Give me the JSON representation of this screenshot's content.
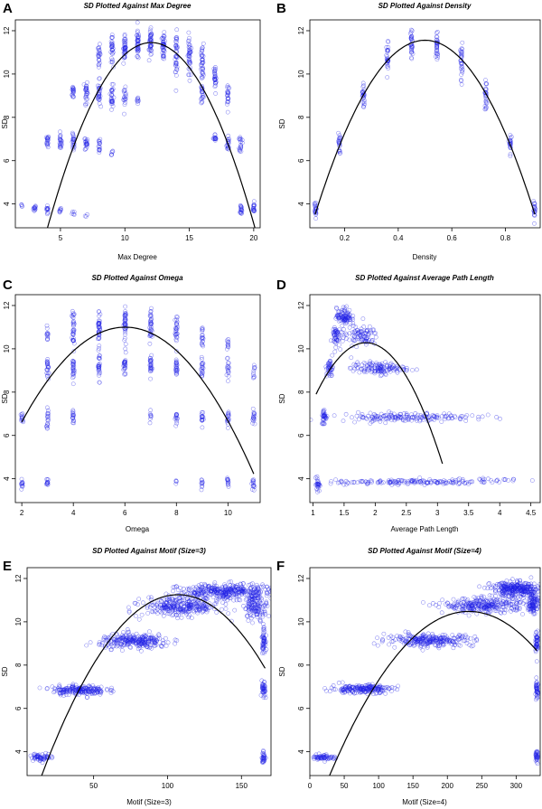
{
  "figure": {
    "point_color": "#1f1fe6",
    "fit_color": "#000000"
  },
  "chart_data": [
    {
      "type": "scatter",
      "letter": "A",
      "title": "SD Plotted Against Max Degree",
      "title_italic_prefix": "SD",
      "xlabel": "Max Degree",
      "ylabel": "SD",
      "xlim": [
        1.5,
        20.5
      ],
      "ylim": [
        2.9,
        12.5
      ],
      "xticks": [
        5,
        10,
        15,
        20
      ],
      "yticks": [
        4,
        6,
        8,
        10,
        12
      ],
      "clusters": [
        {
          "x": 2,
          "y": 3.9,
          "yspread": 0.1,
          "xspread": 0.05,
          "n": 4
        },
        {
          "x": 3,
          "y": 3.8,
          "yspread": 0.15,
          "xspread": 0.05,
          "n": 12
        },
        {
          "x": 4,
          "y": 3.75,
          "yspread": 0.15,
          "xspread": 0.05,
          "n": 12
        },
        {
          "x": 5,
          "y": 3.7,
          "yspread": 0.12,
          "xspread": 0.05,
          "n": 8
        },
        {
          "x": 6,
          "y": 3.55,
          "yspread": 0.1,
          "xspread": 0.05,
          "n": 5
        },
        {
          "x": 7,
          "y": 3.45,
          "yspread": 0.08,
          "xspread": 0.05,
          "n": 3
        },
        {
          "x": 4,
          "y": 6.9,
          "yspread": 0.25,
          "xspread": 0.05,
          "n": 18
        },
        {
          "x": 5,
          "y": 6.85,
          "yspread": 0.35,
          "xspread": 0.05,
          "n": 22
        },
        {
          "x": 6,
          "y": 6.8,
          "yspread": 0.4,
          "xspread": 0.05,
          "n": 22
        },
        {
          "x": 7,
          "y": 6.8,
          "yspread": 0.35,
          "xspread": 0.05,
          "n": 20
        },
        {
          "x": 8,
          "y": 6.7,
          "yspread": 0.35,
          "xspread": 0.05,
          "n": 16
        },
        {
          "x": 9,
          "y": 6.4,
          "yspread": 0.2,
          "xspread": 0.05,
          "n": 6
        },
        {
          "x": 6,
          "y": 9.2,
          "yspread": 0.35,
          "xspread": 0.05,
          "n": 18
        },
        {
          "x": 7,
          "y": 9.2,
          "yspread": 0.5,
          "xspread": 0.05,
          "n": 26
        },
        {
          "x": 8,
          "y": 9.1,
          "yspread": 0.55,
          "xspread": 0.05,
          "n": 28
        },
        {
          "x": 9,
          "y": 9.0,
          "yspread": 0.55,
          "xspread": 0.05,
          "n": 28
        },
        {
          "x": 10,
          "y": 8.9,
          "yspread": 0.4,
          "xspread": 0.05,
          "n": 18
        },
        {
          "x": 11,
          "y": 8.8,
          "yspread": 0.25,
          "xspread": 0.05,
          "n": 8
        },
        {
          "x": 8,
          "y": 10.9,
          "yspread": 0.4,
          "xspread": 0.05,
          "n": 22
        },
        {
          "x": 9,
          "y": 11.1,
          "yspread": 0.55,
          "xspread": 0.05,
          "n": 30
        },
        {
          "x": 10,
          "y": 11.2,
          "yspread": 0.7,
          "xspread": 0.05,
          "n": 40
        },
        {
          "x": 11,
          "y": 11.3,
          "yspread": 0.6,
          "xspread": 0.05,
          "n": 40
        },
        {
          "x": 12,
          "y": 11.4,
          "yspread": 0.55,
          "xspread": 0.05,
          "n": 40
        },
        {
          "x": 13,
          "y": 11.3,
          "yspread": 0.6,
          "xspread": 0.05,
          "n": 40
        },
        {
          "x": 14,
          "y": 11.0,
          "yspread": 0.8,
          "xspread": 0.05,
          "n": 40
        },
        {
          "x": 15,
          "y": 10.8,
          "yspread": 0.9,
          "xspread": 0.05,
          "n": 40
        },
        {
          "x": 16,
          "y": 10.4,
          "yspread": 0.9,
          "xspread": 0.05,
          "n": 36
        },
        {
          "x": 17,
          "y": 9.8,
          "yspread": 0.7,
          "xspread": 0.05,
          "n": 28
        },
        {
          "x": 16,
          "y": 9.1,
          "yspread": 0.5,
          "xspread": 0.05,
          "n": 20
        },
        {
          "x": 18,
          "y": 9.1,
          "yspread": 0.55,
          "xspread": 0.05,
          "n": 22
        },
        {
          "x": 17,
          "y": 7.0,
          "yspread": 0.2,
          "xspread": 0.05,
          "n": 14
        },
        {
          "x": 18,
          "y": 6.8,
          "yspread": 0.35,
          "xspread": 0.05,
          "n": 18
        },
        {
          "x": 19,
          "y": 6.8,
          "yspread": 0.35,
          "xspread": 0.05,
          "n": 18
        },
        {
          "x": 19,
          "y": 3.75,
          "yspread": 0.25,
          "xspread": 0.05,
          "n": 18
        },
        {
          "x": 20,
          "y": 3.8,
          "yspread": 0.25,
          "xspread": 0.05,
          "n": 18
        }
      ],
      "fit": {
        "coef": [
          -0.132,
          3.18,
          -7.7
        ],
        "x_range": [
          3.4,
          20.3
        ]
      }
    },
    {
      "type": "scatter",
      "letter": "B",
      "title": "SD Plotted Against Density",
      "title_italic_prefix": "SD",
      "xlabel": "Density",
      "ylabel": "SD",
      "xlim": [
        0.07,
        0.93
      ],
      "ylim": [
        2.9,
        12.5
      ],
      "xticks": [
        0.2,
        0.4,
        0.6,
        0.8
      ],
      "yticks": [
        4,
        6,
        8,
        10,
        12
      ],
      "clusters": [
        {
          "x": 0.09,
          "y": 3.7,
          "yspread": 0.35,
          "xspread": 0.002,
          "n": 20
        },
        {
          "x": 0.18,
          "y": 6.8,
          "yspread": 0.45,
          "xspread": 0.002,
          "n": 22
        },
        {
          "x": 0.27,
          "y": 9.0,
          "yspread": 0.6,
          "xspread": 0.002,
          "n": 26
        },
        {
          "x": 0.36,
          "y": 10.7,
          "yspread": 0.7,
          "xspread": 0.002,
          "n": 30
        },
        {
          "x": 0.45,
          "y": 11.3,
          "yspread": 0.7,
          "xspread": 0.002,
          "n": 32
        },
        {
          "x": 0.545,
          "y": 11.3,
          "yspread": 0.7,
          "xspread": 0.002,
          "n": 32
        },
        {
          "x": 0.636,
          "y": 10.6,
          "yspread": 0.75,
          "xspread": 0.002,
          "n": 30
        },
        {
          "x": 0.727,
          "y": 9.0,
          "yspread": 0.6,
          "xspread": 0.002,
          "n": 26
        },
        {
          "x": 0.818,
          "y": 6.8,
          "yspread": 0.45,
          "xspread": 0.002,
          "n": 22
        },
        {
          "x": 0.909,
          "y": 3.7,
          "yspread": 0.35,
          "xspread": 0.002,
          "n": 20
        }
      ],
      "fit": {
        "coef": [
          -47.8,
          47.8,
          -0.39
        ],
        "x_range": [
          0.09,
          0.91
        ]
      }
    },
    {
      "type": "scatter",
      "letter": "C",
      "title": "SD Plotted Against Omega",
      "title_italic_prefix": "SD",
      "xlabel": "Omega",
      "ylabel": "SD",
      "xlim": [
        1.75,
        11.25
      ],
      "ylim": [
        2.9,
        12.5
      ],
      "xticks": [
        2,
        4,
        6,
        8,
        10
      ],
      "yticks": [
        4,
        6,
        8,
        10,
        12
      ],
      "clusters": [
        {
          "x": 2,
          "y": 3.8,
          "yspread": 0.2,
          "xspread": 0.02,
          "n": 12
        },
        {
          "x": 3,
          "y": 3.8,
          "yspread": 0.2,
          "xspread": 0.02,
          "n": 12
        },
        {
          "x": 8,
          "y": 3.85,
          "yspread": 0.1,
          "xspread": 0.02,
          "n": 4
        },
        {
          "x": 9,
          "y": 3.8,
          "yspread": 0.2,
          "xspread": 0.02,
          "n": 10
        },
        {
          "x": 10,
          "y": 3.8,
          "yspread": 0.2,
          "xspread": 0.02,
          "n": 12
        },
        {
          "x": 11,
          "y": 3.75,
          "yspread": 0.25,
          "xspread": 0.02,
          "n": 14
        },
        {
          "x": 2,
          "y": 6.8,
          "yspread": 0.3,
          "xspread": 0.02,
          "n": 12
        },
        {
          "x": 3,
          "y": 6.8,
          "yspread": 0.4,
          "xspread": 0.02,
          "n": 18
        },
        {
          "x": 4,
          "y": 6.85,
          "yspread": 0.3,
          "xspread": 0.02,
          "n": 16
        },
        {
          "x": 7,
          "y": 6.9,
          "yspread": 0.2,
          "xspread": 0.02,
          "n": 8
        },
        {
          "x": 8,
          "y": 6.8,
          "yspread": 0.3,
          "xspread": 0.02,
          "n": 14
        },
        {
          "x": 9,
          "y": 6.8,
          "yspread": 0.35,
          "xspread": 0.02,
          "n": 16
        },
        {
          "x": 10,
          "y": 6.8,
          "yspread": 0.35,
          "xspread": 0.02,
          "n": 16
        },
        {
          "x": 11,
          "y": 6.8,
          "yspread": 0.35,
          "xspread": 0.02,
          "n": 16
        },
        {
          "x": 3,
          "y": 9.1,
          "yspread": 0.55,
          "xspread": 0.02,
          "n": 22
        },
        {
          "x": 4,
          "y": 9.1,
          "yspread": 0.55,
          "xspread": 0.02,
          "n": 26
        },
        {
          "x": 5,
          "y": 9.2,
          "yspread": 0.55,
          "xspread": 0.02,
          "n": 28
        },
        {
          "x": 6,
          "y": 9.2,
          "yspread": 0.5,
          "xspread": 0.02,
          "n": 26
        },
        {
          "x": 7,
          "y": 9.2,
          "yspread": 0.5,
          "xspread": 0.02,
          "n": 26
        },
        {
          "x": 8,
          "y": 9.1,
          "yspread": 0.55,
          "xspread": 0.02,
          "n": 24
        },
        {
          "x": 9,
          "y": 9.1,
          "yspread": 0.5,
          "xspread": 0.02,
          "n": 20
        },
        {
          "x": 10,
          "y": 9.0,
          "yspread": 0.4,
          "xspread": 0.02,
          "n": 16
        },
        {
          "x": 11,
          "y": 9.0,
          "yspread": 0.3,
          "xspread": 0.02,
          "n": 10
        },
        {
          "x": 3,
          "y": 10.7,
          "yspread": 0.4,
          "xspread": 0.02,
          "n": 12
        },
        {
          "x": 4,
          "y": 11.0,
          "yspread": 0.75,
          "xspread": 0.02,
          "n": 34
        },
        {
          "x": 5,
          "y": 11.1,
          "yspread": 0.75,
          "xspread": 0.02,
          "n": 38
        },
        {
          "x": 6,
          "y": 11.1,
          "yspread": 0.75,
          "xspread": 0.02,
          "n": 38
        },
        {
          "x": 7,
          "y": 11.0,
          "yspread": 0.75,
          "xspread": 0.02,
          "n": 34
        },
        {
          "x": 8,
          "y": 10.8,
          "yspread": 0.6,
          "xspread": 0.02,
          "n": 26
        },
        {
          "x": 9,
          "y": 10.5,
          "yspread": 0.5,
          "xspread": 0.02,
          "n": 18
        },
        {
          "x": 10,
          "y": 10.3,
          "yspread": 0.4,
          "xspread": 0.02,
          "n": 10
        }
      ],
      "fit": {
        "coef": [
          -0.272,
          3.27,
          1.17
        ],
        "x_range": [
          2,
          11
        ]
      }
    },
    {
      "type": "scatter",
      "letter": "D",
      "title": "SD Plotted Against Average Path Length",
      "title_italic_prefix": "SD",
      "xlabel": "Average Path Length",
      "ylabel": "SD",
      "xlim": [
        0.95,
        4.65
      ],
      "ylim": [
        2.9,
        12.5
      ],
      "xticks": [
        1.0,
        1.5,
        2.0,
        2.5,
        3.0,
        3.5,
        4.0,
        4.5
      ],
      "yticks": [
        4,
        6,
        8,
        10,
        12
      ],
      "clusters": [
        {
          "x": 1.08,
          "y": 3.75,
          "yspread": 0.3,
          "xspread": 0.015,
          "n": 26
        },
        {
          "x": 2.6,
          "y": 3.85,
          "yspread": 0.1,
          "xspread": 0.65,
          "n": 150
        },
        {
          "x": 3.9,
          "y": 3.95,
          "yspread": 0.08,
          "xspread": 0.35,
          "n": 24
        },
        {
          "x": 1.18,
          "y": 6.85,
          "yspread": 0.35,
          "xspread": 0.02,
          "n": 34
        },
        {
          "x": 2.5,
          "y": 6.85,
          "yspread": 0.18,
          "xspread": 0.55,
          "n": 170
        },
        {
          "x": 1.27,
          "y": 9.1,
          "yspread": 0.4,
          "xspread": 0.025,
          "n": 40
        },
        {
          "x": 2.05,
          "y": 9.1,
          "yspread": 0.25,
          "xspread": 0.22,
          "n": 130
        },
        {
          "x": 1.36,
          "y": 10.6,
          "yspread": 0.45,
          "xspread": 0.035,
          "n": 50
        },
        {
          "x": 1.75,
          "y": 10.6,
          "yspread": 0.4,
          "xspread": 0.15,
          "n": 90
        },
        {
          "x": 1.5,
          "y": 11.5,
          "yspread": 0.35,
          "xspread": 0.06,
          "n": 90
        }
      ],
      "fit": {
        "coef": [
          -3.7,
          13.7,
          -2.4
        ],
        "x_range": [
          1.05,
          3.08
        ]
      }
    },
    {
      "type": "scatter",
      "letter": "E",
      "title": "SD Plotted Against Motif (Size=3)",
      "title_italic_prefix": "SD",
      "xlabel": "Motif (Size=3)",
      "ylabel": "SD",
      "xlim": [
        5,
        170
      ],
      "ylim": [
        2.9,
        12.5
      ],
      "xticks": [
        50,
        100,
        150
      ],
      "yticks": [
        4,
        6,
        8,
        10,
        12
      ],
      "clusters": [
        {
          "x": 15,
          "y": 3.75,
          "yspread": 0.15,
          "xspread": 4,
          "n": 60
        },
        {
          "x": 165,
          "y": 3.75,
          "yspread": 0.25,
          "xspread": 0.6,
          "n": 30
        },
        {
          "x": 40,
          "y": 6.85,
          "yspread": 0.2,
          "xspread": 9,
          "n": 200
        },
        {
          "x": 165,
          "y": 6.8,
          "yspread": 0.4,
          "xspread": 0.6,
          "n": 40
        },
        {
          "x": 78,
          "y": 9.1,
          "yspread": 0.3,
          "xspread": 12,
          "n": 260
        },
        {
          "x": 165,
          "y": 9.2,
          "yspread": 0.5,
          "xspread": 0.6,
          "n": 50
        },
        {
          "x": 110,
          "y": 10.7,
          "yspread": 0.4,
          "xspread": 13,
          "n": 300
        },
        {
          "x": 140,
          "y": 11.4,
          "yspread": 0.3,
          "xspread": 16,
          "n": 360
        },
        {
          "x": 160,
          "y": 10.7,
          "yspread": 0.5,
          "xspread": 4,
          "n": 120
        }
      ],
      "fit": {
        "coef": [
          -0.00098,
          0.21,
          0.0
        ],
        "x_range": [
          11,
          166
        ]
      }
    },
    {
      "type": "scatter",
      "letter": "F",
      "title": "SD Plotted Against Motif (Size=4)",
      "title_italic_prefix": "SD",
      "xlabel": "Motif (Size=4)",
      "ylabel": "SD",
      "xlim": [
        0,
        335
      ],
      "ylim": [
        2.9,
        12.5
      ],
      "xticks": [
        0,
        50,
        100,
        150,
        200,
        250,
        300
      ],
      "yticks": [
        4,
        6,
        8,
        10,
        12
      ],
      "clusters": [
        {
          "x": 20,
          "y": 3.75,
          "yspread": 0.12,
          "xspread": 8,
          "n": 60
        },
        {
          "x": 330,
          "y": 3.75,
          "yspread": 0.25,
          "xspread": 1,
          "n": 30
        },
        {
          "x": 75,
          "y": 6.9,
          "yspread": 0.18,
          "xspread": 22,
          "n": 200
        },
        {
          "x": 330,
          "y": 6.8,
          "yspread": 0.4,
          "xspread": 1,
          "n": 40
        },
        {
          "x": 175,
          "y": 9.15,
          "yspread": 0.25,
          "xspread": 32,
          "n": 260
        },
        {
          "x": 330,
          "y": 9.1,
          "yspread": 0.5,
          "xspread": 1,
          "n": 50
        },
        {
          "x": 255,
          "y": 10.75,
          "yspread": 0.3,
          "xspread": 30,
          "n": 280
        },
        {
          "x": 300,
          "y": 11.5,
          "yspread": 0.3,
          "xspread": 18,
          "n": 300
        },
        {
          "x": 325,
          "y": 10.9,
          "yspread": 0.5,
          "xspread": 4,
          "n": 100
        }
      ],
      "fit": {
        "coef": [
          -0.000185,
          0.0855,
          0.6
        ],
        "x_range": [
          18,
          330
        ]
      }
    }
  ]
}
